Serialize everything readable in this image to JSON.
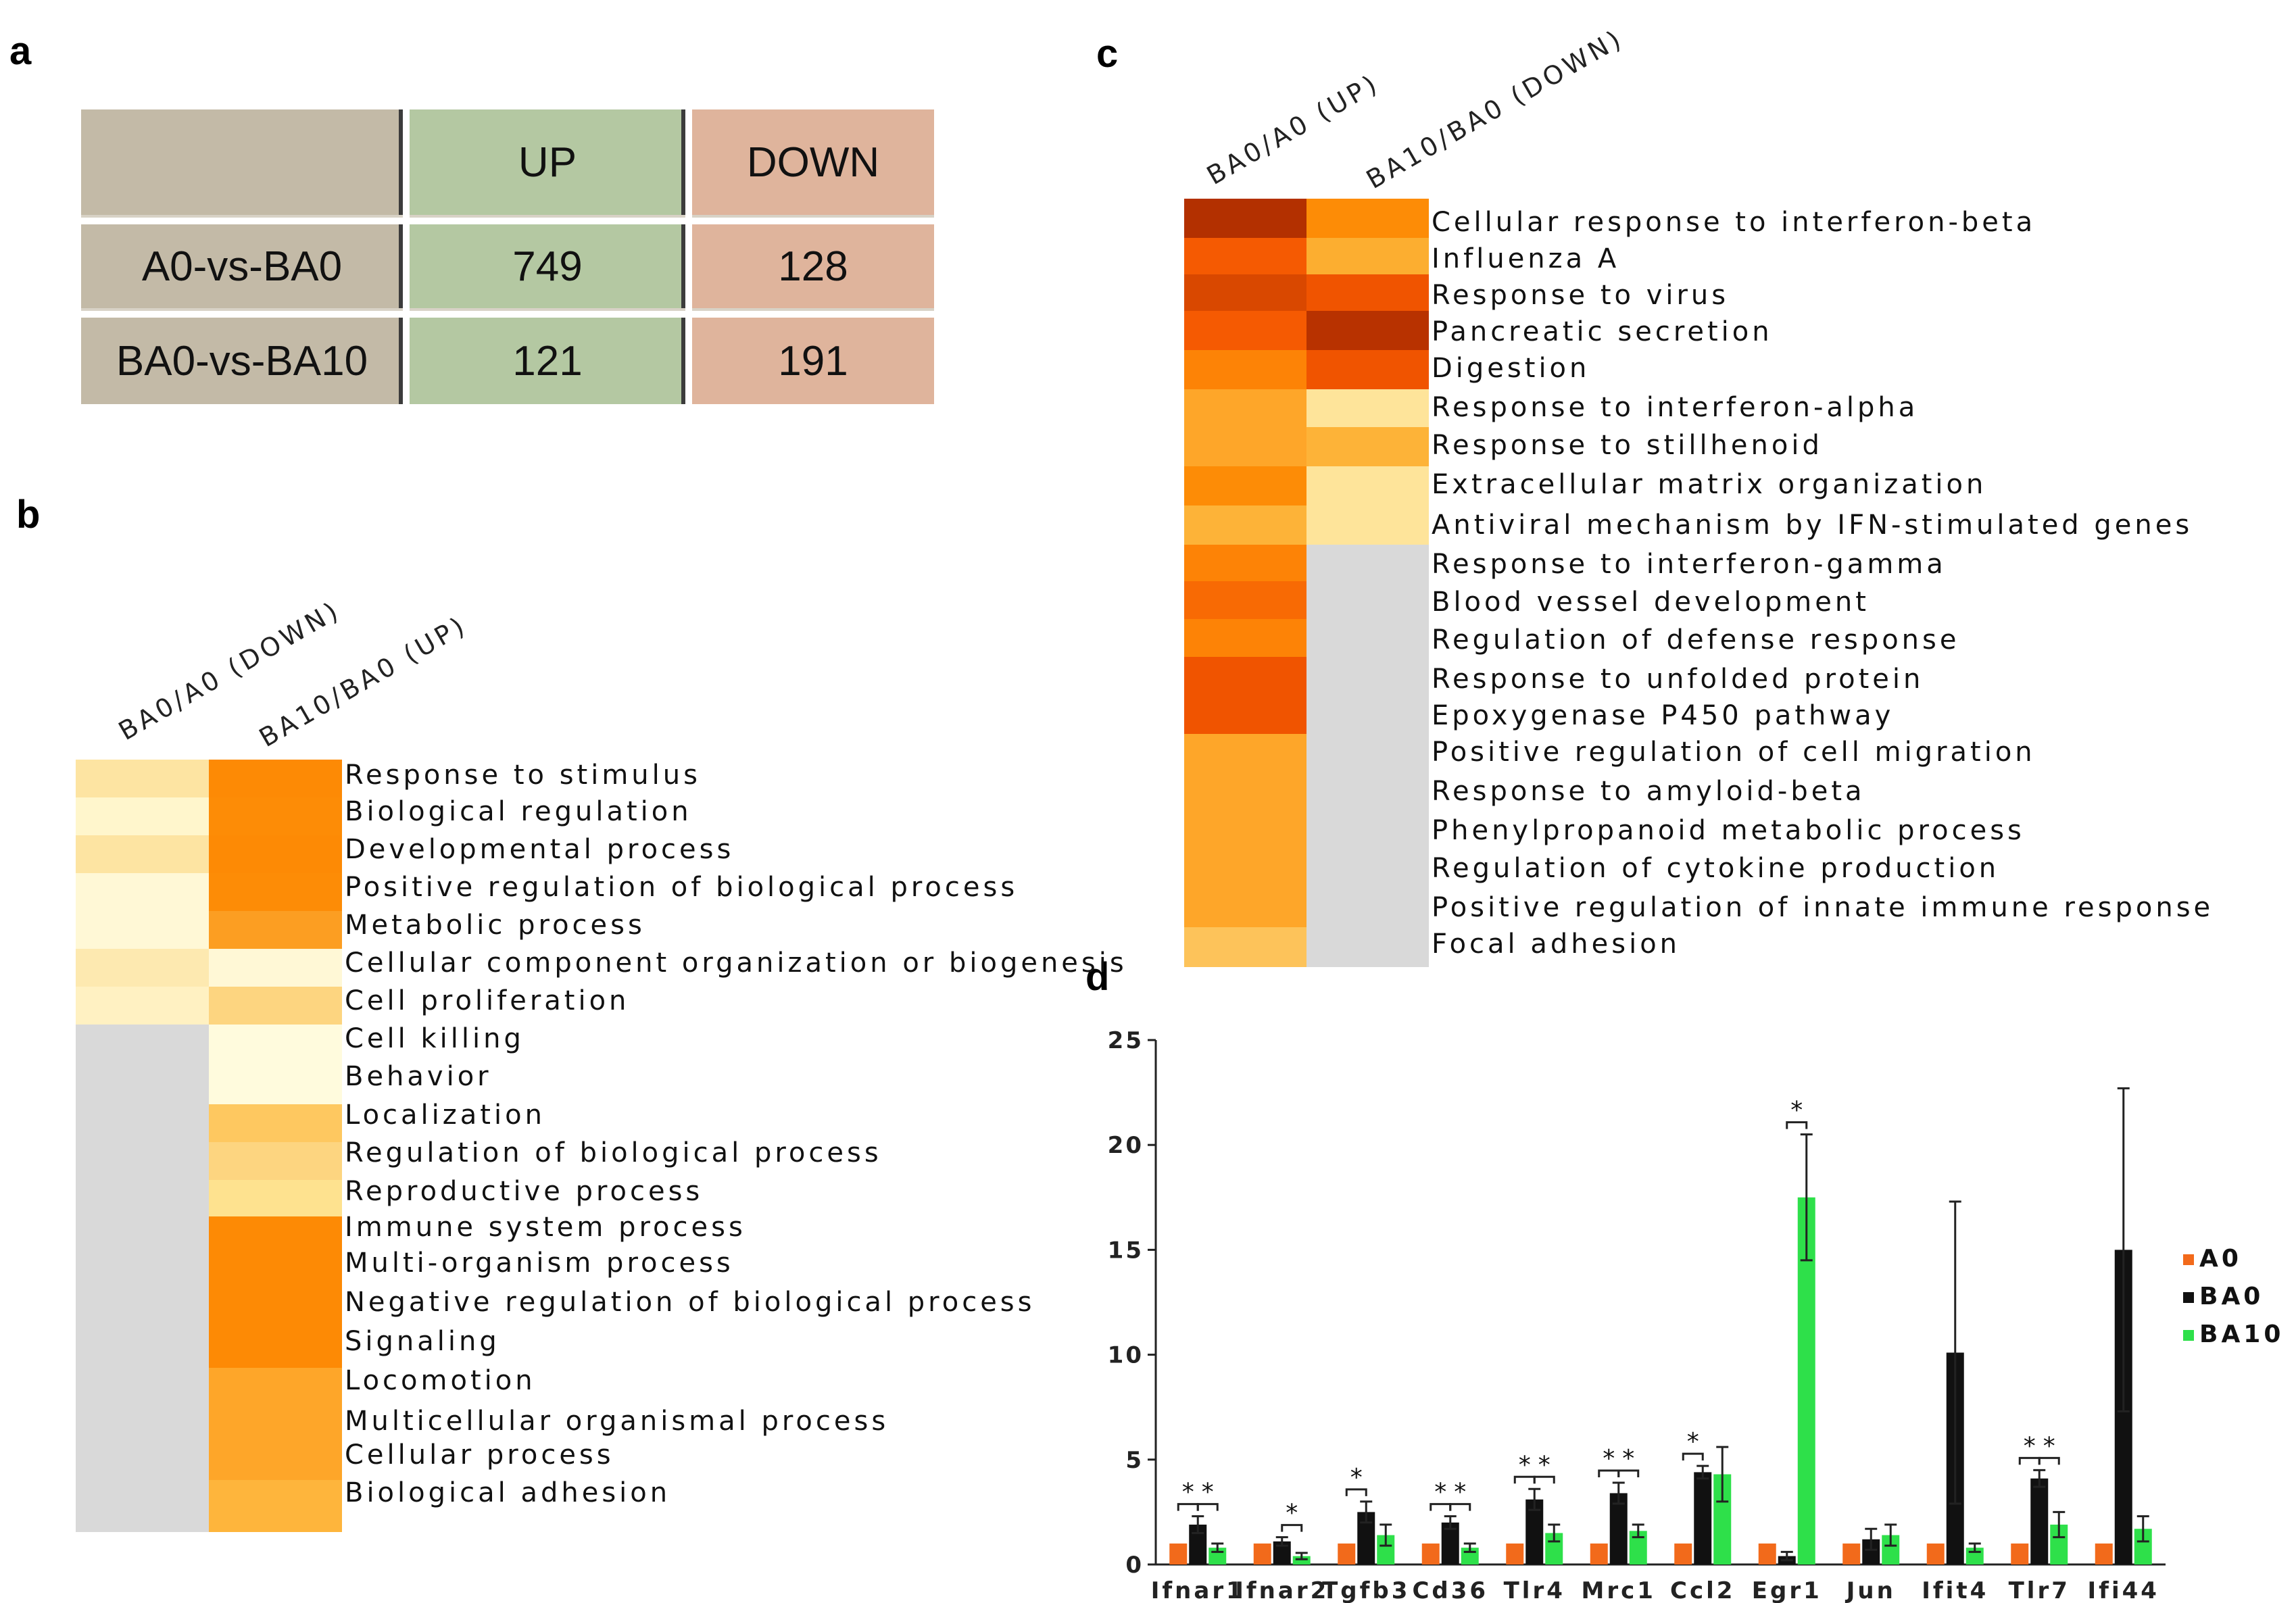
{
  "panel_labels": {
    "a": "a",
    "b": "b",
    "c": "c",
    "d": "d"
  },
  "table": {
    "header": [
      "",
      "UP",
      "DOWN"
    ],
    "rows": [
      {
        "label": "A0-vs-BA0",
        "up": "749",
        "down": "128"
      },
      {
        "label": "BA0-vs-BA10",
        "up": "121",
        "down": "191"
      }
    ]
  },
  "heatmap_b": {
    "columns": [
      "BA0/A0 (DOWN)",
      "BA10/BA0 (UP)"
    ],
    "rows": [
      "Response to stimulus",
      "Biological regulation",
      "Developmental process",
      "Positive regulation of biological process",
      "Metabolic process",
      "Cellular component organization or biogenesis",
      "Cell proliferation",
      "Cell killing",
      "Behavior",
      "Localization",
      "Regulation of biological process",
      "Reproductive process",
      "Immune system process",
      "Multi-organism process",
      "Negative regulation of biological process",
      "Signaling",
      "Locomotion",
      "Multicellular organismal process",
      "Cellular process",
      "Biological adhesion"
    ],
    "colors": [
      [
        "#fde4a2",
        "#fd8a05"
      ],
      [
        "#fff6cc",
        "#fd8c06"
      ],
      [
        "#fde4a2",
        "#fd8a05"
      ],
      [
        "#fff8d6",
        "#fd8c06"
      ],
      [
        "#fff8d6",
        "#fc9e22"
      ],
      [
        "#fde9b0",
        "#fff8d6"
      ],
      [
        "#fff1c2",
        "#fdd580"
      ],
      [
        "#d9d9d9",
        "#fffbdd"
      ],
      [
        "#d9d9d9",
        "#fffbdd"
      ],
      [
        "#d9d9d9",
        "#fec860"
      ],
      [
        "#d9d9d9",
        "#fdd580"
      ],
      [
        "#d9d9d9",
        "#fee28f"
      ],
      [
        "#d9d9d9",
        "#fd8a05"
      ],
      [
        "#d9d9d9",
        "#fd8a05"
      ],
      [
        "#d9d9d9",
        "#fd8a05"
      ],
      [
        "#d9d9d9",
        "#fd8a05"
      ],
      [
        "#d9d9d9",
        "#fea629"
      ],
      [
        "#d9d9d9",
        "#fea629"
      ],
      [
        "#d9d9d9",
        "#fea629"
      ],
      [
        "#d9d9d9",
        "#feb53c"
      ]
    ]
  },
  "heatmap_c": {
    "columns": [
      "BA0/A0 (UP)",
      "BA10/BA0 (DOWN)"
    ],
    "rows": [
      "Cellular response to interferon-beta",
      "Influenza A",
      "Response to virus",
      "Pancreatic secretion",
      "Digestion",
      "Response to interferon-alpha",
      "Response to stillhenoid",
      "Extracellular matrix organization",
      "Antiviral mechanism by IFN-stimulated genes",
      "Response to interferon-gamma",
      "Blood vessel development",
      "Regulation of defense response",
      "Response to unfolded protein",
      "Epoxygenase P450 pathway",
      "Positive regulation of cell migration",
      "Response to amyloid-beta",
      "Phenylpropanoid metabolic process",
      "Regulation of cytokine production",
      "Positive regulation of innate immune response",
      "Focal adhesion"
    ],
    "colors": [
      [
        "#b33000",
        "#fd8c06"
      ],
      [
        "#f55a02",
        "#fcae30"
      ],
      [
        "#d94800",
        "#f05400"
      ],
      [
        "#f55a02",
        "#b83200"
      ],
      [
        "#fd8306",
        "#f05400"
      ],
      [
        "#fea629",
        "#fee49a"
      ],
      [
        "#fea629",
        "#fdb338"
      ],
      [
        "#fd8c06",
        "#fee49a"
      ],
      [
        "#fdb338",
        "#fee49a"
      ],
      [
        "#fd8306",
        "#d9d9d9"
      ],
      [
        "#f86a04",
        "#d9d9d9"
      ],
      [
        "#fd8306",
        "#d9d9d9"
      ],
      [
        "#f05400",
        "#d9d9d9"
      ],
      [
        "#f05400",
        "#d9d9d9"
      ],
      [
        "#fea629",
        "#d9d9d9"
      ],
      [
        "#fea629",
        "#d9d9d9"
      ],
      [
        "#fea629",
        "#d9d9d9"
      ],
      [
        "#fea629",
        "#d9d9d9"
      ],
      [
        "#fea629",
        "#d9d9d9"
      ],
      [
        "#fdc35a",
        "#d9d9d9"
      ]
    ]
  },
  "chart_data": {
    "type": "bar",
    "title": "",
    "xlabel": "",
    "ylabel": "",
    "ylim": [
      0,
      25
    ],
    "yticks": [
      "0",
      "5",
      "10",
      "15",
      "20",
      "25"
    ],
    "categories": [
      "Ifnar1",
      "Ifnar2",
      "Tgfb3",
      "Cd36",
      "Tlr4",
      "Mrc1",
      "Ccl2",
      "Egr1",
      "Jun",
      "Ifit4",
      "Tlr7",
      "Ifi44"
    ],
    "series": [
      {
        "name": "A0",
        "color": "#f26a1b",
        "values": [
          1,
          1,
          1,
          1,
          1,
          1,
          1,
          1,
          1,
          1,
          1,
          1
        ],
        "err": [
          0,
          0,
          0,
          0,
          0,
          0,
          0,
          0,
          0,
          0,
          0,
          0
        ]
      },
      {
        "name": "BA0",
        "color": "#111111",
        "values": [
          1.9,
          1.1,
          2.5,
          2.0,
          3.1,
          3.4,
          4.4,
          0.4,
          1.2,
          10.1,
          4.1,
          15.0
        ],
        "err": [
          0.4,
          0.2,
          0.5,
          0.3,
          0.5,
          0.5,
          0.3,
          0.2,
          0.5,
          7.2,
          0.4,
          7.7
        ]
      },
      {
        "name": "BA10",
        "color": "#2ee04a",
        "values": [
          0.8,
          0.4,
          1.4,
          0.8,
          1.5,
          1.6,
          4.3,
          17.5,
          1.4,
          0.8,
          1.9,
          1.7
        ],
        "err": [
          0.2,
          0.15,
          0.5,
          0.2,
          0.4,
          0.3,
          1.3,
          3.0,
          0.5,
          0.2,
          0.6,
          0.6
        ]
      }
    ],
    "significance": [
      {
        "category": "Ifnar1",
        "pairs": [
          "A0-BA0",
          "BA0-BA10"
        ]
      },
      {
        "category": "Ifnar2",
        "pairs": [
          "BA0-BA10"
        ]
      },
      {
        "category": "Tgfb3",
        "pairs": [
          "A0-BA0"
        ]
      },
      {
        "category": "Cd36",
        "pairs": [
          "A0-BA0",
          "BA0-BA10"
        ]
      },
      {
        "category": "Tlr4",
        "pairs": [
          "A0-BA0",
          "BA0-BA10"
        ]
      },
      {
        "category": "Mrc1",
        "pairs": [
          "A0-BA0",
          "BA0-BA10"
        ]
      },
      {
        "category": "Ccl2",
        "pairs": [
          "A0-BA0"
        ]
      },
      {
        "category": "Egr1",
        "pairs": [
          "BA0-BA10"
        ]
      },
      {
        "category": "Tlr7",
        "pairs": [
          "A0-BA0",
          "BA0-BA10"
        ]
      }
    ],
    "star": "*",
    "legend_position": "right"
  }
}
